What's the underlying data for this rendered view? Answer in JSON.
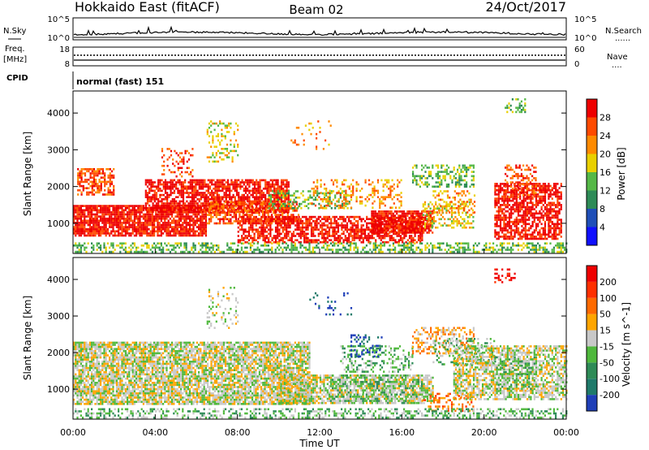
{
  "header": {
    "station": "Hokkaido East (fitACF)",
    "beam": "Beam 02",
    "date": "24/Oct/2017"
  },
  "sidebar": {
    "nsky": "N.Sky",
    "freq": "Freq.",
    "mhz": "[MHz]",
    "cpid": "CPID",
    "nsearch": "N.Search",
    "nave": "Nave",
    "dots": "......",
    "nave_dots": "...."
  },
  "mode_text": "normal (fast) 151",
  "ticks": {
    "noise": [
      "10^5",
      "10^0"
    ],
    "noise_right": [
      "10^5",
      "10^0"
    ],
    "freq": [
      "18",
      "8"
    ],
    "nave": [
      "60",
      "0"
    ]
  },
  "chart_data": [
    {
      "type": "heatmap",
      "title": "",
      "xlabel": "",
      "ylabel": "Slant Range [km]",
      "xlim": [
        0,
        24
      ],
      "ylim": [
        180,
        4600
      ],
      "x_ticks": [
        "00:00",
        "04:00",
        "08:00",
        "12:00",
        "16:00",
        "20:00",
        "00:00"
      ],
      "y_ticks": [
        1000,
        2000,
        3000,
        4000
      ],
      "colorbar": {
        "label": "Power [dB]",
        "ticks": [
          "4",
          "8",
          "12",
          "16",
          "20",
          "24",
          "28"
        ],
        "colors": [
          "#1010ff",
          "#1f4fb8",
          "#2e8b57",
          "#55b847",
          "#e9d000",
          "#ff8a00",
          "#ff4a00",
          "#ee0000"
        ]
      },
      "regions": [
        {
          "t0": 0.0,
          "t1": 6.5,
          "r0": 650,
          "r1": 1500,
          "density": 0.85,
          "level": 7
        },
        {
          "t0": 3.5,
          "t1": 10.5,
          "r0": 1300,
          "r1": 2200,
          "density": 0.75,
          "level": 7
        },
        {
          "t0": 6.5,
          "t1": 11.0,
          "r0": 1000,
          "r1": 1600,
          "density": 0.65,
          "level": 6
        },
        {
          "t0": 0.2,
          "t1": 2.0,
          "r0": 1800,
          "r1": 2500,
          "density": 0.55,
          "level": 6
        },
        {
          "t0": 8.0,
          "t1": 17.0,
          "r0": 500,
          "r1": 1200,
          "density": 0.65,
          "level": 7
        },
        {
          "t0": 14.5,
          "t1": 17.5,
          "r0": 750,
          "r1": 1350,
          "density": 0.85,
          "level": 7
        },
        {
          "t0": 9.5,
          "t1": 13.5,
          "r0": 1400,
          "r1": 1900,
          "density": 0.35,
          "level": 3
        },
        {
          "t0": 11.5,
          "t1": 16.0,
          "r0": 1400,
          "r1": 2200,
          "density": 0.28,
          "level": 5
        },
        {
          "t0": 16.5,
          "t1": 19.5,
          "r0": 2000,
          "r1": 2600,
          "density": 0.45,
          "level": 3
        },
        {
          "t0": 17.0,
          "t1": 19.5,
          "r0": 900,
          "r1": 1600,
          "density": 0.4,
          "level": 4
        },
        {
          "t0": 17.5,
          "t1": 19.5,
          "r0": 1300,
          "r1": 1900,
          "density": 0.3,
          "level": 5
        },
        {
          "t0": 20.5,
          "t1": 23.8,
          "r0": 600,
          "r1": 2100,
          "density": 0.7,
          "level": 7
        },
        {
          "t0": 21.0,
          "t1": 22.5,
          "r0": 1700,
          "r1": 2600,
          "density": 0.35,
          "level": 6
        },
        {
          "t0": 0.0,
          "t1": 24.0,
          "r0": 200,
          "r1": 480,
          "density": 0.45,
          "level": 3
        },
        {
          "t0": 6.5,
          "t1": 8.0,
          "r0": 2700,
          "r1": 3800,
          "density": 0.22,
          "level": 4
        },
        {
          "t0": 4.3,
          "t1": 5.8,
          "r0": 2300,
          "r1": 3050,
          "density": 0.2,
          "level": 6
        },
        {
          "t0": 10.5,
          "t1": 12.5,
          "r0": 3000,
          "r1": 3800,
          "density": 0.1,
          "level": 5
        },
        {
          "t0": 21.0,
          "t1": 22.0,
          "r0": 4000,
          "r1": 4400,
          "density": 0.3,
          "level": 3
        }
      ]
    },
    {
      "type": "heatmap",
      "title": "",
      "xlabel": "Time UT",
      "ylabel": "Slant Range [km]",
      "xlim": [
        0,
        24
      ],
      "ylim": [
        180,
        4600
      ],
      "x_ticks": [
        "00:00",
        "04:00",
        "08:00",
        "12:00",
        "16:00",
        "20:00",
        "00:00"
      ],
      "y_ticks": [
        1000,
        2000,
        3000,
        4000
      ],
      "colorbar": {
        "label": "Velocity [m s^-1]",
        "ticks": [
          "200",
          "100",
          "50",
          "15",
          "-15",
          "-50",
          "-100",
          "-200"
        ],
        "colors": [
          "#1f3fb8",
          "#1f7a6a",
          "#2e8b57",
          "#4fb83c",
          "#c8c8c8",
          "#ffa500",
          "#ff6a00",
          "#ff3000",
          "#ee0000"
        ]
      },
      "regions": [
        {
          "t0": 0.0,
          "t1": 11.5,
          "r0": 600,
          "r1": 2300,
          "density": 0.82,
          "level": 4
        },
        {
          "t0": 10.0,
          "t1": 17.5,
          "r0": 600,
          "r1": 1400,
          "density": 0.7,
          "level": 4
        },
        {
          "t0": 12.5,
          "t1": 17.0,
          "r0": 600,
          "r1": 1400,
          "density": 0.35,
          "level": 3
        },
        {
          "t0": 13.0,
          "t1": 16.5,
          "r0": 1500,
          "r1": 2200,
          "density": 0.3,
          "level": 3
        },
        {
          "t0": 13.5,
          "t1": 15.0,
          "r0": 1900,
          "r1": 2500,
          "density": 0.3,
          "level": 0
        },
        {
          "t0": 16.5,
          "t1": 19.5,
          "r0": 2000,
          "r1": 2700,
          "density": 0.45,
          "level": 5
        },
        {
          "t0": 17.5,
          "t1": 20.5,
          "r0": 1700,
          "r1": 2400,
          "density": 0.3,
          "level": 3
        },
        {
          "t0": 18.5,
          "t1": 24.0,
          "r0": 700,
          "r1": 2200,
          "density": 0.65,
          "level": 4
        },
        {
          "t0": 20.5,
          "t1": 22.5,
          "r0": 900,
          "r1": 1900,
          "density": 0.35,
          "level": 3
        },
        {
          "t0": 17.0,
          "t1": 19.5,
          "r0": 400,
          "r1": 900,
          "density": 0.3,
          "level": 6
        },
        {
          "t0": 0.0,
          "t1": 24.0,
          "r0": 200,
          "r1": 480,
          "density": 0.4,
          "level": 3
        },
        {
          "t0": 6.5,
          "t1": 8.0,
          "r0": 2700,
          "r1": 3800,
          "density": 0.2,
          "level": 4
        },
        {
          "t0": 11.5,
          "t1": 13.5,
          "r0": 3050,
          "r1": 3650,
          "density": 0.12,
          "level": 0
        },
        {
          "t0": 20.5,
          "t1": 21.5,
          "r0": 3900,
          "r1": 4300,
          "density": 0.3,
          "level": 8
        }
      ]
    }
  ]
}
